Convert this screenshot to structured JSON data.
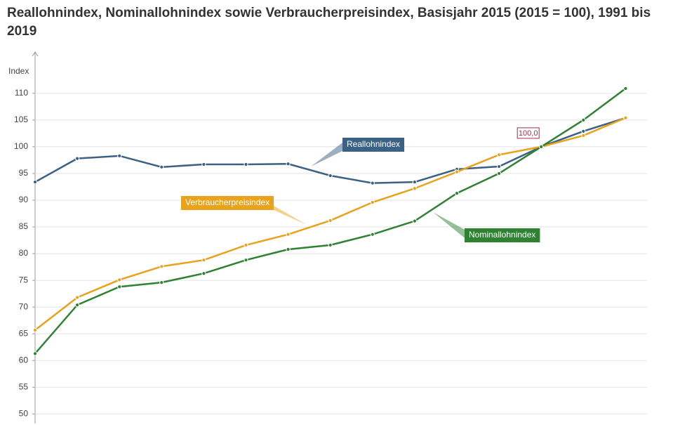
{
  "chart_data": {
    "type": "line",
    "title": "Reallohnindex, Nominallohnindex sowie Verbraucherpreisindex, Basisjahr 2015 (2015 = 100), 1991 bis 2019",
    "y_label": "Index",
    "categories": [
      null,
      null,
      null,
      null,
      null,
      null,
      null,
      null,
      null,
      null,
      null,
      null,
      null,
      null,
      null
    ],
    "series": [
      {
        "name": "Reallohnindex",
        "color": "#3b6185",
        "values": [
          93.4,
          97.8,
          98.3,
          96.2,
          96.7,
          96.7,
          96.8,
          94.6,
          93.2,
          93.4,
          95.8,
          96.3,
          100,
          102.9,
          105.4
        ],
        "value_labels": [
          null,
          null,
          null,
          null,
          null,
          null,
          null,
          null,
          null,
          null,
          null,
          null,
          "100,0",
          null,
          null
        ]
      },
      {
        "name": "Verbraucherpreisindex",
        "color": "#e9a21c",
        "values": [
          65.7,
          71.8,
          75.1,
          77.6,
          78.8,
          81.6,
          83.6,
          86.2,
          89.6,
          92.2,
          95.3,
          98.5,
          100,
          102.1,
          105.4
        ]
      },
      {
        "name": "Nominallohnindex",
        "color": "#2f8232",
        "values": [
          61.3,
          70.4,
          73.8,
          74.6,
          76.3,
          78.8,
          80.8,
          81.6,
          83.6,
          86.1,
          91.3,
          95.0,
          100,
          105.0,
          110.9
        ]
      }
    ],
    "ylim": [
      48.2,
      117.6
    ],
    "yticks": [
      50,
      55,
      60,
      65,
      70,
      75,
      80,
      85,
      90,
      95,
      100,
      105,
      110
    ],
    "grid": true
  }
}
